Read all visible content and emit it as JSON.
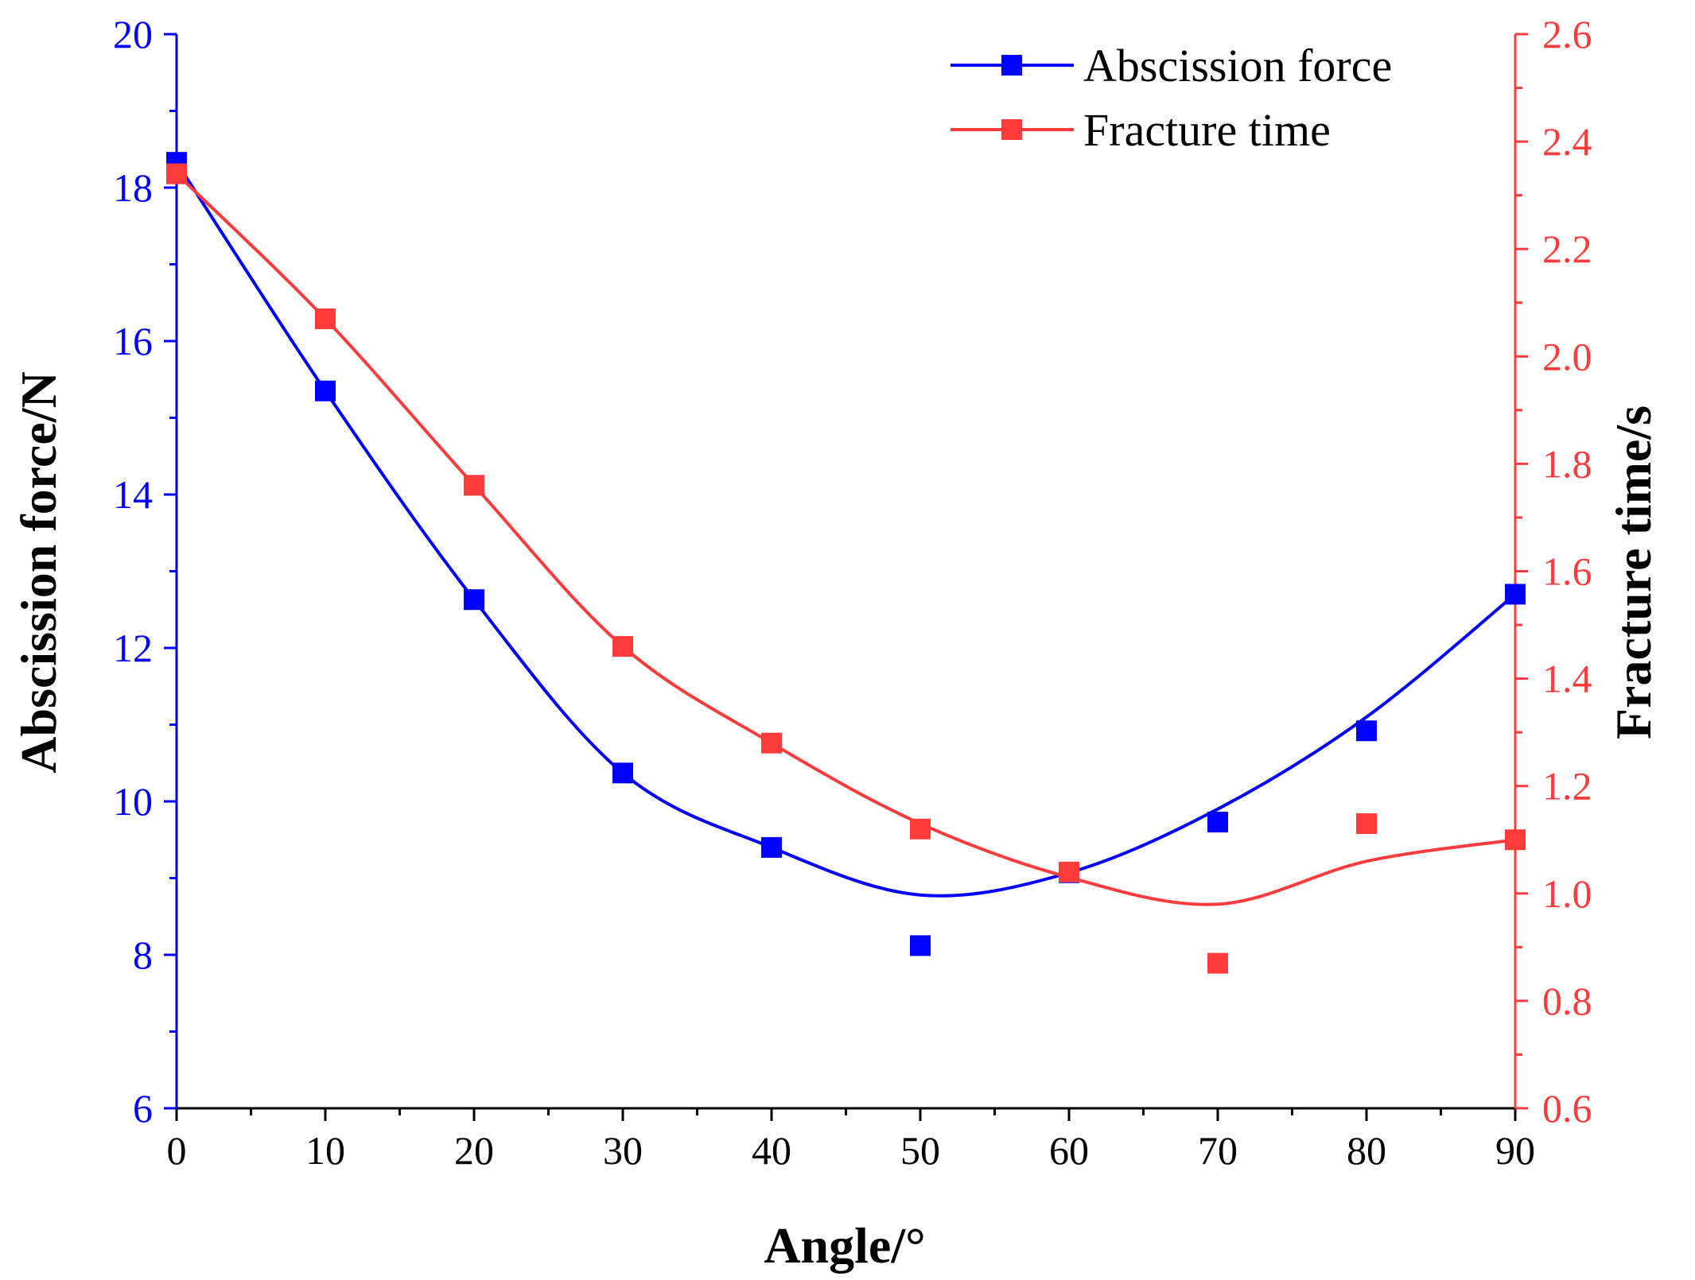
{
  "chart_data": {
    "type": "line",
    "title": "",
    "xlabel": "Angle/°",
    "x": [
      0,
      10,
      20,
      30,
      40,
      50,
      60,
      70,
      80,
      90
    ],
    "xlim": [
      0,
      90
    ],
    "x_ticks": [
      "0",
      "10",
      "20",
      "30",
      "40",
      "50",
      "60",
      "70",
      "80",
      "90"
    ],
    "y_left": {
      "label": "Abscission force/N",
      "lim": [
        6,
        20
      ],
      "ticks": [
        "6",
        "8",
        "10",
        "12",
        "14",
        "16",
        "18",
        "20"
      ]
    },
    "y_right": {
      "label": "Fracture time/s",
      "lim": [
        0.6,
        2.6
      ],
      "ticks": [
        "0.6",
        "0.8",
        "1.0",
        "1.2",
        "1.4",
        "1.6",
        "1.8",
        "2.0",
        "2.2",
        "2.4",
        "2.6"
      ]
    },
    "series": [
      {
        "name": "Abscission force",
        "axis": "left",
        "color": "#0000ff",
        "marker": "square",
        "values": [
          18.33,
          15.35,
          12.63,
          10.37,
          9.4,
          8.12,
          9.07,
          9.73,
          10.92,
          12.7
        ],
        "fit": [
          18.33,
          15.35,
          12.63,
          10.37,
          9.4,
          8.78,
          9.07,
          9.9,
          11.1,
          12.7
        ]
      },
      {
        "name": "Fracture time",
        "axis": "right",
        "color": "#ff3b3b",
        "marker": "square",
        "values": [
          2.34,
          2.07,
          1.76,
          1.46,
          1.28,
          1.12,
          1.04,
          0.87,
          1.13,
          1.1
        ],
        "fit": [
          2.34,
          2.07,
          1.76,
          1.46,
          1.28,
          1.13,
          1.03,
          0.98,
          1.06,
          1.1
        ]
      }
    ],
    "legend_position": "top-right"
  }
}
